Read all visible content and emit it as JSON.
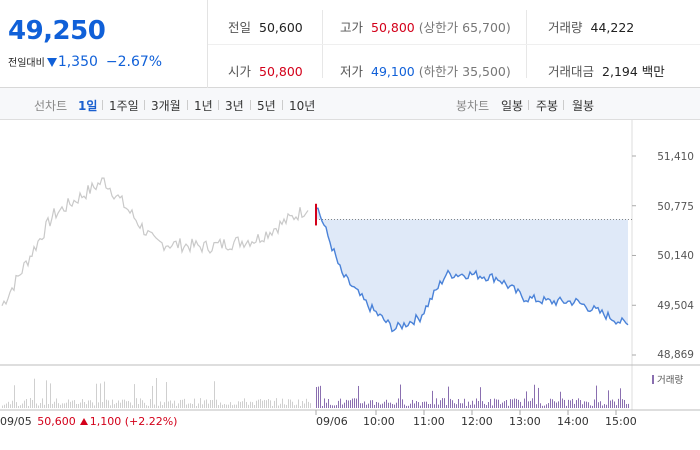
{
  "quote": {
    "price": "49,250",
    "change_label": "전일대비",
    "change": "1,350",
    "change_pct": "−2.67%"
  },
  "stats": {
    "prev_close_label": "전일",
    "prev_close": "50,600",
    "high_label": "고가",
    "high": "50,800",
    "upper_limit": "(상한가 65,700)",
    "volume_label": "거래량",
    "volume": "44,222",
    "open_label": "시가",
    "open": "50,800",
    "low_label": "저가",
    "low": "49,100",
    "lower_limit": "(하한가 35,500)",
    "amount_label": "거래대금",
    "amount": "2,194 백만"
  },
  "tabs": {
    "line_label": "선차트",
    "line_tabs": [
      "1일",
      "1주일",
      "3개월",
      "1년",
      "3년",
      "5년",
      "10년"
    ],
    "candle_label": "봉차트",
    "candle_tabs": [
      "일봉",
      "주봉",
      "월봉"
    ]
  },
  "chart": {
    "yticks": [
      "51,410",
      "50,775",
      "50,140",
      "49,504",
      "48,869"
    ],
    "volume_legend": "거래량",
    "prev_day": {
      "date": "09/05",
      "close": "50,600",
      "change": "1,100",
      "pct": "(+2.22%)"
    },
    "xticks": [
      "09/06",
      "10:00",
      "11:00",
      "12:00",
      "13:00",
      "14:00",
      "15:00"
    ]
  },
  "colors": {
    "up": "#d3001a",
    "down": "#1060d8",
    "today_line": "#4a82d8",
    "today_fill": "#dfe9f8",
    "prev_line": "#c9c9c9",
    "volume": "#8a6fb0"
  },
  "chart_data": {
    "type": "line",
    "ylim": [
      48869,
      51410
    ],
    "series": [
      {
        "x": [
          "09/05 09:00",
          "09/05 10:00",
          "09/05 11:00",
          "09/05 12:00",
          "09/05 13:00",
          "09/05 14:00",
          "09/05 15:00"
        ],
        "values": [
          49500,
          50650,
          51100,
          50300,
          50250,
          50350,
          50750
        ]
      },
      {
        "x": [
          "09:00",
          "09:30",
          "10:00",
          "10:30",
          "11:00",
          "11:30",
          "12:00",
          "12:30",
          "13:00",
          "13:30",
          "14:00",
          "14:30",
          "15:00"
        ],
        "values": [
          50800,
          49900,
          49500,
          49200,
          49350,
          49900,
          49900,
          49850,
          49600,
          49550,
          49550,
          49400,
          49250
        ]
      }
    ],
    "reference_line": 50600
  }
}
